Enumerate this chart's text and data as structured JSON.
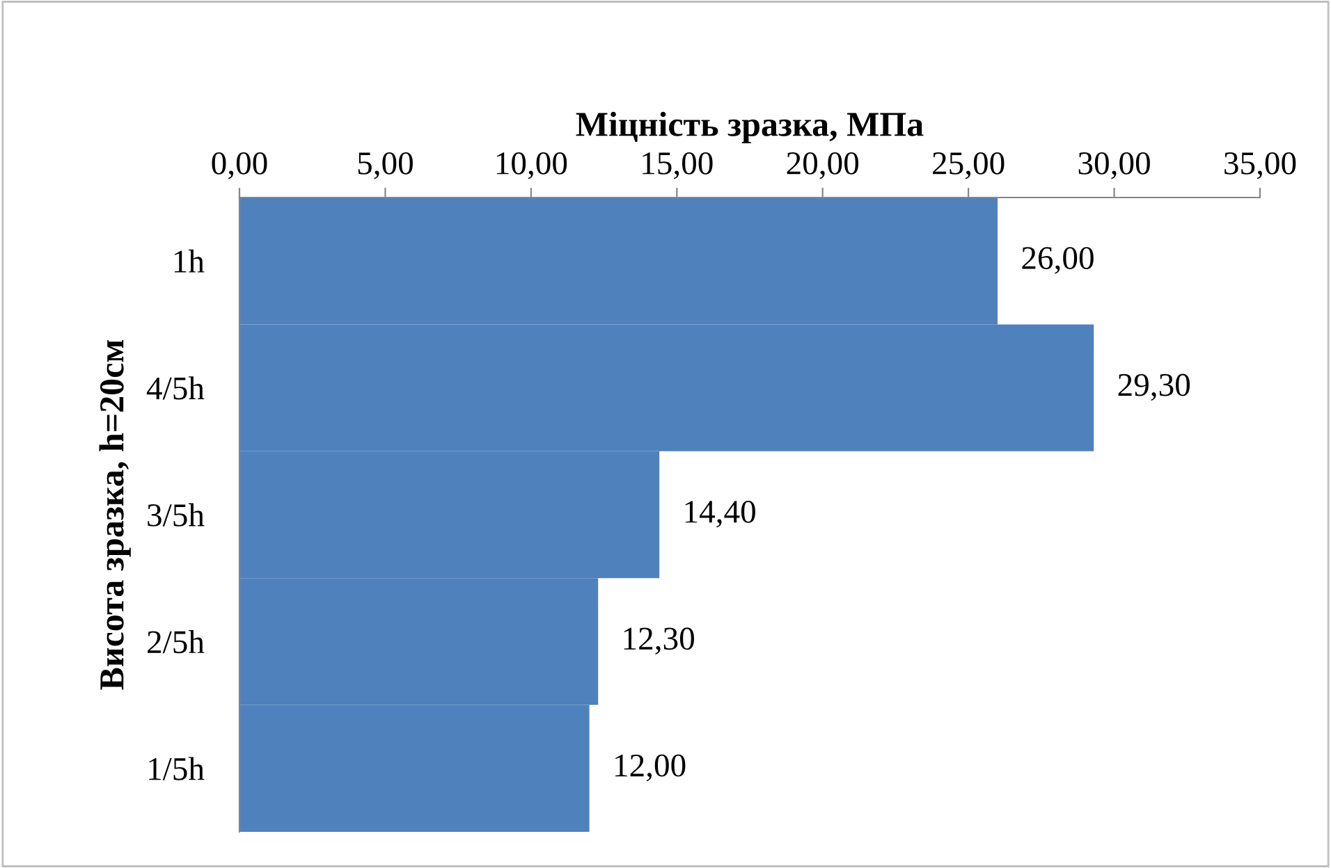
{
  "chart_data": {
    "type": "bar",
    "orientation": "horizontal",
    "xlabel": "Міцність зразка, МПа",
    "ylabel": "Висота зразка, h=20см",
    "categories": [
      "1h",
      "4/5h",
      "3/5h",
      "2/5h",
      "1/5h"
    ],
    "values": [
      26.0,
      29.3,
      14.4,
      12.3,
      12.0
    ],
    "value_labels": [
      "26,00",
      "29,30",
      "14,40",
      "12,30",
      "12,00"
    ],
    "color": "#4f81bd",
    "xlim": [
      0,
      35
    ],
    "xticks": [
      {
        "value": 0,
        "label": "0,00"
      },
      {
        "value": 5,
        "label": "5,00"
      },
      {
        "value": 10,
        "label": "10,00"
      },
      {
        "value": 15,
        "label": "15,00"
      },
      {
        "value": 20,
        "label": "20,00"
      },
      {
        "value": 25,
        "label": "25,00"
      },
      {
        "value": 30,
        "label": "30,00"
      },
      {
        "value": 35,
        "label": "35,00"
      }
    ],
    "grid": false,
    "legend": false
  }
}
